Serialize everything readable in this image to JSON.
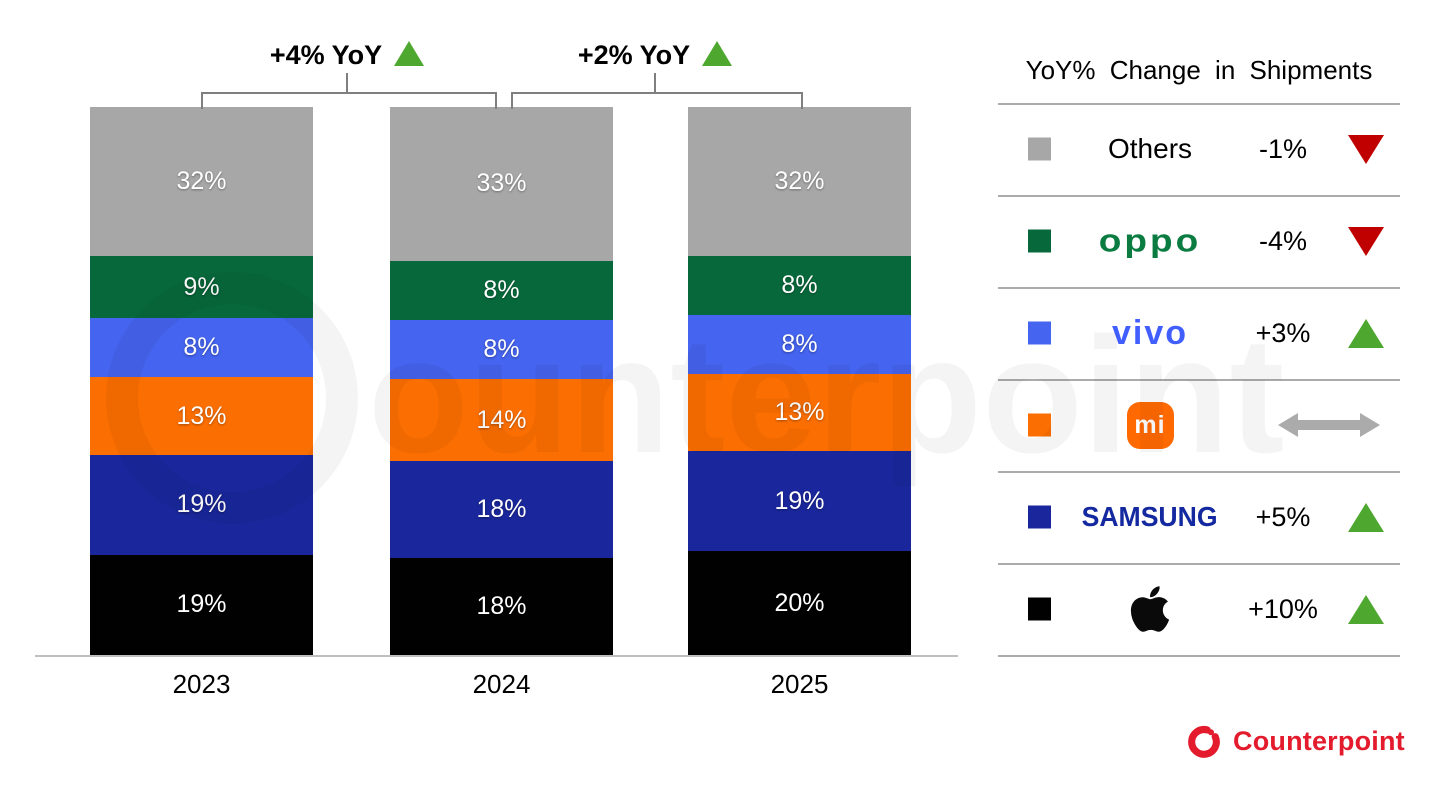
{
  "chart_data": {
    "type": "stacked-bar",
    "title": "",
    "value_suffix": "%",
    "categories": [
      "2023",
      "2024",
      "2025"
    ],
    "series": [
      {
        "name": "Apple",
        "color": "#010101",
        "values": [
          19,
          18,
          20
        ]
      },
      {
        "name": "Samsung",
        "color": "#1A279C",
        "values": [
          19,
          18,
          19
        ]
      },
      {
        "name": "Xiaomi",
        "color": "#FB6E01",
        "values": [
          13,
          14,
          13
        ]
      },
      {
        "name": "vivo",
        "color": "#4564EF",
        "values": [
          8,
          8,
          8
        ]
      },
      {
        "name": "OPPO",
        "color": "#07693B",
        "values": [
          9,
          8,
          8
        ]
      },
      {
        "name": "Others",
        "color": "#A7A7A7",
        "values": [
          32,
          33,
          32
        ]
      }
    ],
    "stack_order": "bottom-to-top",
    "annotations": [
      {
        "between": [
          "2023",
          "2024"
        ],
        "label": "+4% YoY",
        "direction": "up"
      },
      {
        "between": [
          "2024",
          "2025"
        ],
        "label": "+2% YoY",
        "direction": "up"
      }
    ],
    "axis_labels": [
      "2023",
      "2024",
      "2025"
    ],
    "grid": false,
    "legend_position": "right"
  },
  "legend": {
    "title": "YoY% Change in Shipments",
    "rows": [
      {
        "brand": "Others",
        "swatch": "#A7A7A7",
        "change": "-1%",
        "direction": "down"
      },
      {
        "brand": "OPPO",
        "swatch": "#07693B",
        "change": "-4%",
        "direction": "down",
        "logo_text": "oppo"
      },
      {
        "brand": "vivo",
        "swatch": "#4564EF",
        "change": "+3%",
        "direction": "up",
        "logo_text": "vivo"
      },
      {
        "brand": "Xiaomi",
        "swatch": "#FB6E01",
        "change": "",
        "direction": "flat",
        "logo_text": "mi"
      },
      {
        "brand": "Samsung",
        "swatch": "#1A279C",
        "change": "+5%",
        "direction": "up",
        "logo_text": "SAMSUNG"
      },
      {
        "brand": "Apple",
        "swatch": "#010101",
        "change": "+10%",
        "direction": "up"
      }
    ]
  },
  "colors": {
    "up_triangle": "#4EA72E",
    "down_triangle": "#C00000",
    "flat_arrow": "#ABABAB",
    "axis_line": "#BFBFBF",
    "bracket_line": "#7F7F7F",
    "footer_red": "#E31B2D"
  },
  "watermark": {
    "text": "Counterpoint"
  },
  "footer": {
    "brand": "Counterpoint"
  }
}
